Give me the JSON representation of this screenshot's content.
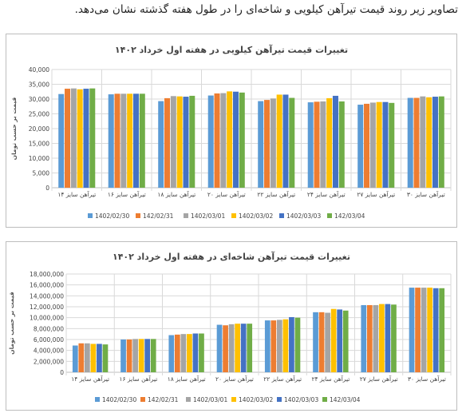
{
  "intro_text": "تصاویر زیر روند قیمت تیرآهن کیلویی و شاخه‌ای را در طول هفته گذشته نشان می‌دهد.",
  "colors": [
    "#5B9BD5",
    "#ED7D31",
    "#A5A5A5",
    "#FFC000",
    "#4472C4",
    "#70AD47"
  ],
  "chart_data": [
    {
      "type": "bar",
      "title": "تغییرات قیمت تیرآهن کیلویی در هفته اول خرداد ۱۴۰۲",
      "ylabel": "قیمت بر حسب تومان",
      "xlabel": "",
      "ylim": [
        0,
        40000
      ],
      "ytick_labels": [
        "0",
        "5,000",
        "10,000",
        "15,000",
        "20,000",
        "25,000",
        "30,000",
        "35,000",
        "40,000"
      ],
      "grid": true,
      "legend_position": "bottom",
      "categories": [
        "تیرآهن سایز ۱۴",
        "تیرآهن سایز ۱۶",
        "تیرآهن سایز ۱۸",
        "تیرآهن سایز ۲۰",
        "تیرآهن سایز ۲۲",
        "تیرآهن سایز ۲۴",
        "تیرآهن سایز ۲۷",
        "تیرآهن سایز ۳۰"
      ],
      "series": [
        {
          "name": "1402/02/30",
          "values": [
            31700,
            31600,
            29300,
            31200,
            29300,
            28900,
            28100,
            30400
          ]
        },
        {
          "name": "142/02/31",
          "values": [
            33500,
            31800,
            30300,
            31900,
            29700,
            29100,
            28400,
            30400
          ]
        },
        {
          "name": "1402/03/01",
          "values": [
            33600,
            31800,
            31000,
            32000,
            30200,
            29200,
            28800,
            30900
          ]
        },
        {
          "name": "1402/03/02",
          "values": [
            33300,
            31800,
            30900,
            32600,
            31500,
            30300,
            29000,
            30600
          ]
        },
        {
          "name": "1402/03/03",
          "values": [
            33500,
            31800,
            30800,
            32500,
            31500,
            31100,
            29000,
            30800
          ]
        },
        {
          "name": "142/03/04",
          "values": [
            33600,
            31800,
            31100,
            32200,
            30400,
            29200,
            28700,
            30900
          ]
        }
      ]
    },
    {
      "type": "bar",
      "title": "تغییرات قیمت تیرآهن شاخه‌ای در هفته اول خرداد ۱۴۰۲",
      "ylabel": "قیمت بر حسب تومان",
      "xlabel": "",
      "ylim": [
        0,
        18000000
      ],
      "ytick_labels": [
        "0",
        "2,000,000",
        "4,000,000",
        "6,000,000",
        "8,000,000",
        "10,000,000",
        "12,000,000",
        "14,000,000",
        "16,000,000",
        "18,000,000"
      ],
      "grid": true,
      "legend_position": "bottom",
      "categories": [
        "تیرآهن سایز ۱۴",
        "تیرآهن سایز ۱۶",
        "تیرآهن سایز ۱۸",
        "تیرآهن سایز ۲۰",
        "تیرآهن سایز ۲۲",
        "تیرآهن سایز ۲۴",
        "تیرآهن سایز ۲۷",
        "تیرآهن سایز ۳۰"
      ],
      "series": [
        {
          "name": "1402/02/30",
          "values": [
            4900000,
            6000000,
            6800000,
            8700000,
            9500000,
            11000000,
            12300000,
            15500000
          ]
        },
        {
          "name": "142/02/31",
          "values": [
            5300000,
            6000000,
            6900000,
            8600000,
            9500000,
            11000000,
            12300000,
            15500000
          ]
        },
        {
          "name": "1402/03/01",
          "values": [
            5300000,
            6100000,
            7000000,
            8800000,
            9600000,
            10900000,
            12300000,
            15500000
          ]
        },
        {
          "name": "1402/03/02",
          "values": [
            5200000,
            6100000,
            7000000,
            8900000,
            9700000,
            11600000,
            12500000,
            15500000
          ]
        },
        {
          "name": "1402/03/03",
          "values": [
            5200000,
            6100000,
            7100000,
            8900000,
            10100000,
            11500000,
            12500000,
            15400000
          ]
        },
        {
          "name": "142/03/04",
          "values": [
            5100000,
            6100000,
            7100000,
            8900000,
            10000000,
            11300000,
            12400000,
            15400000
          ]
        }
      ]
    }
  ]
}
